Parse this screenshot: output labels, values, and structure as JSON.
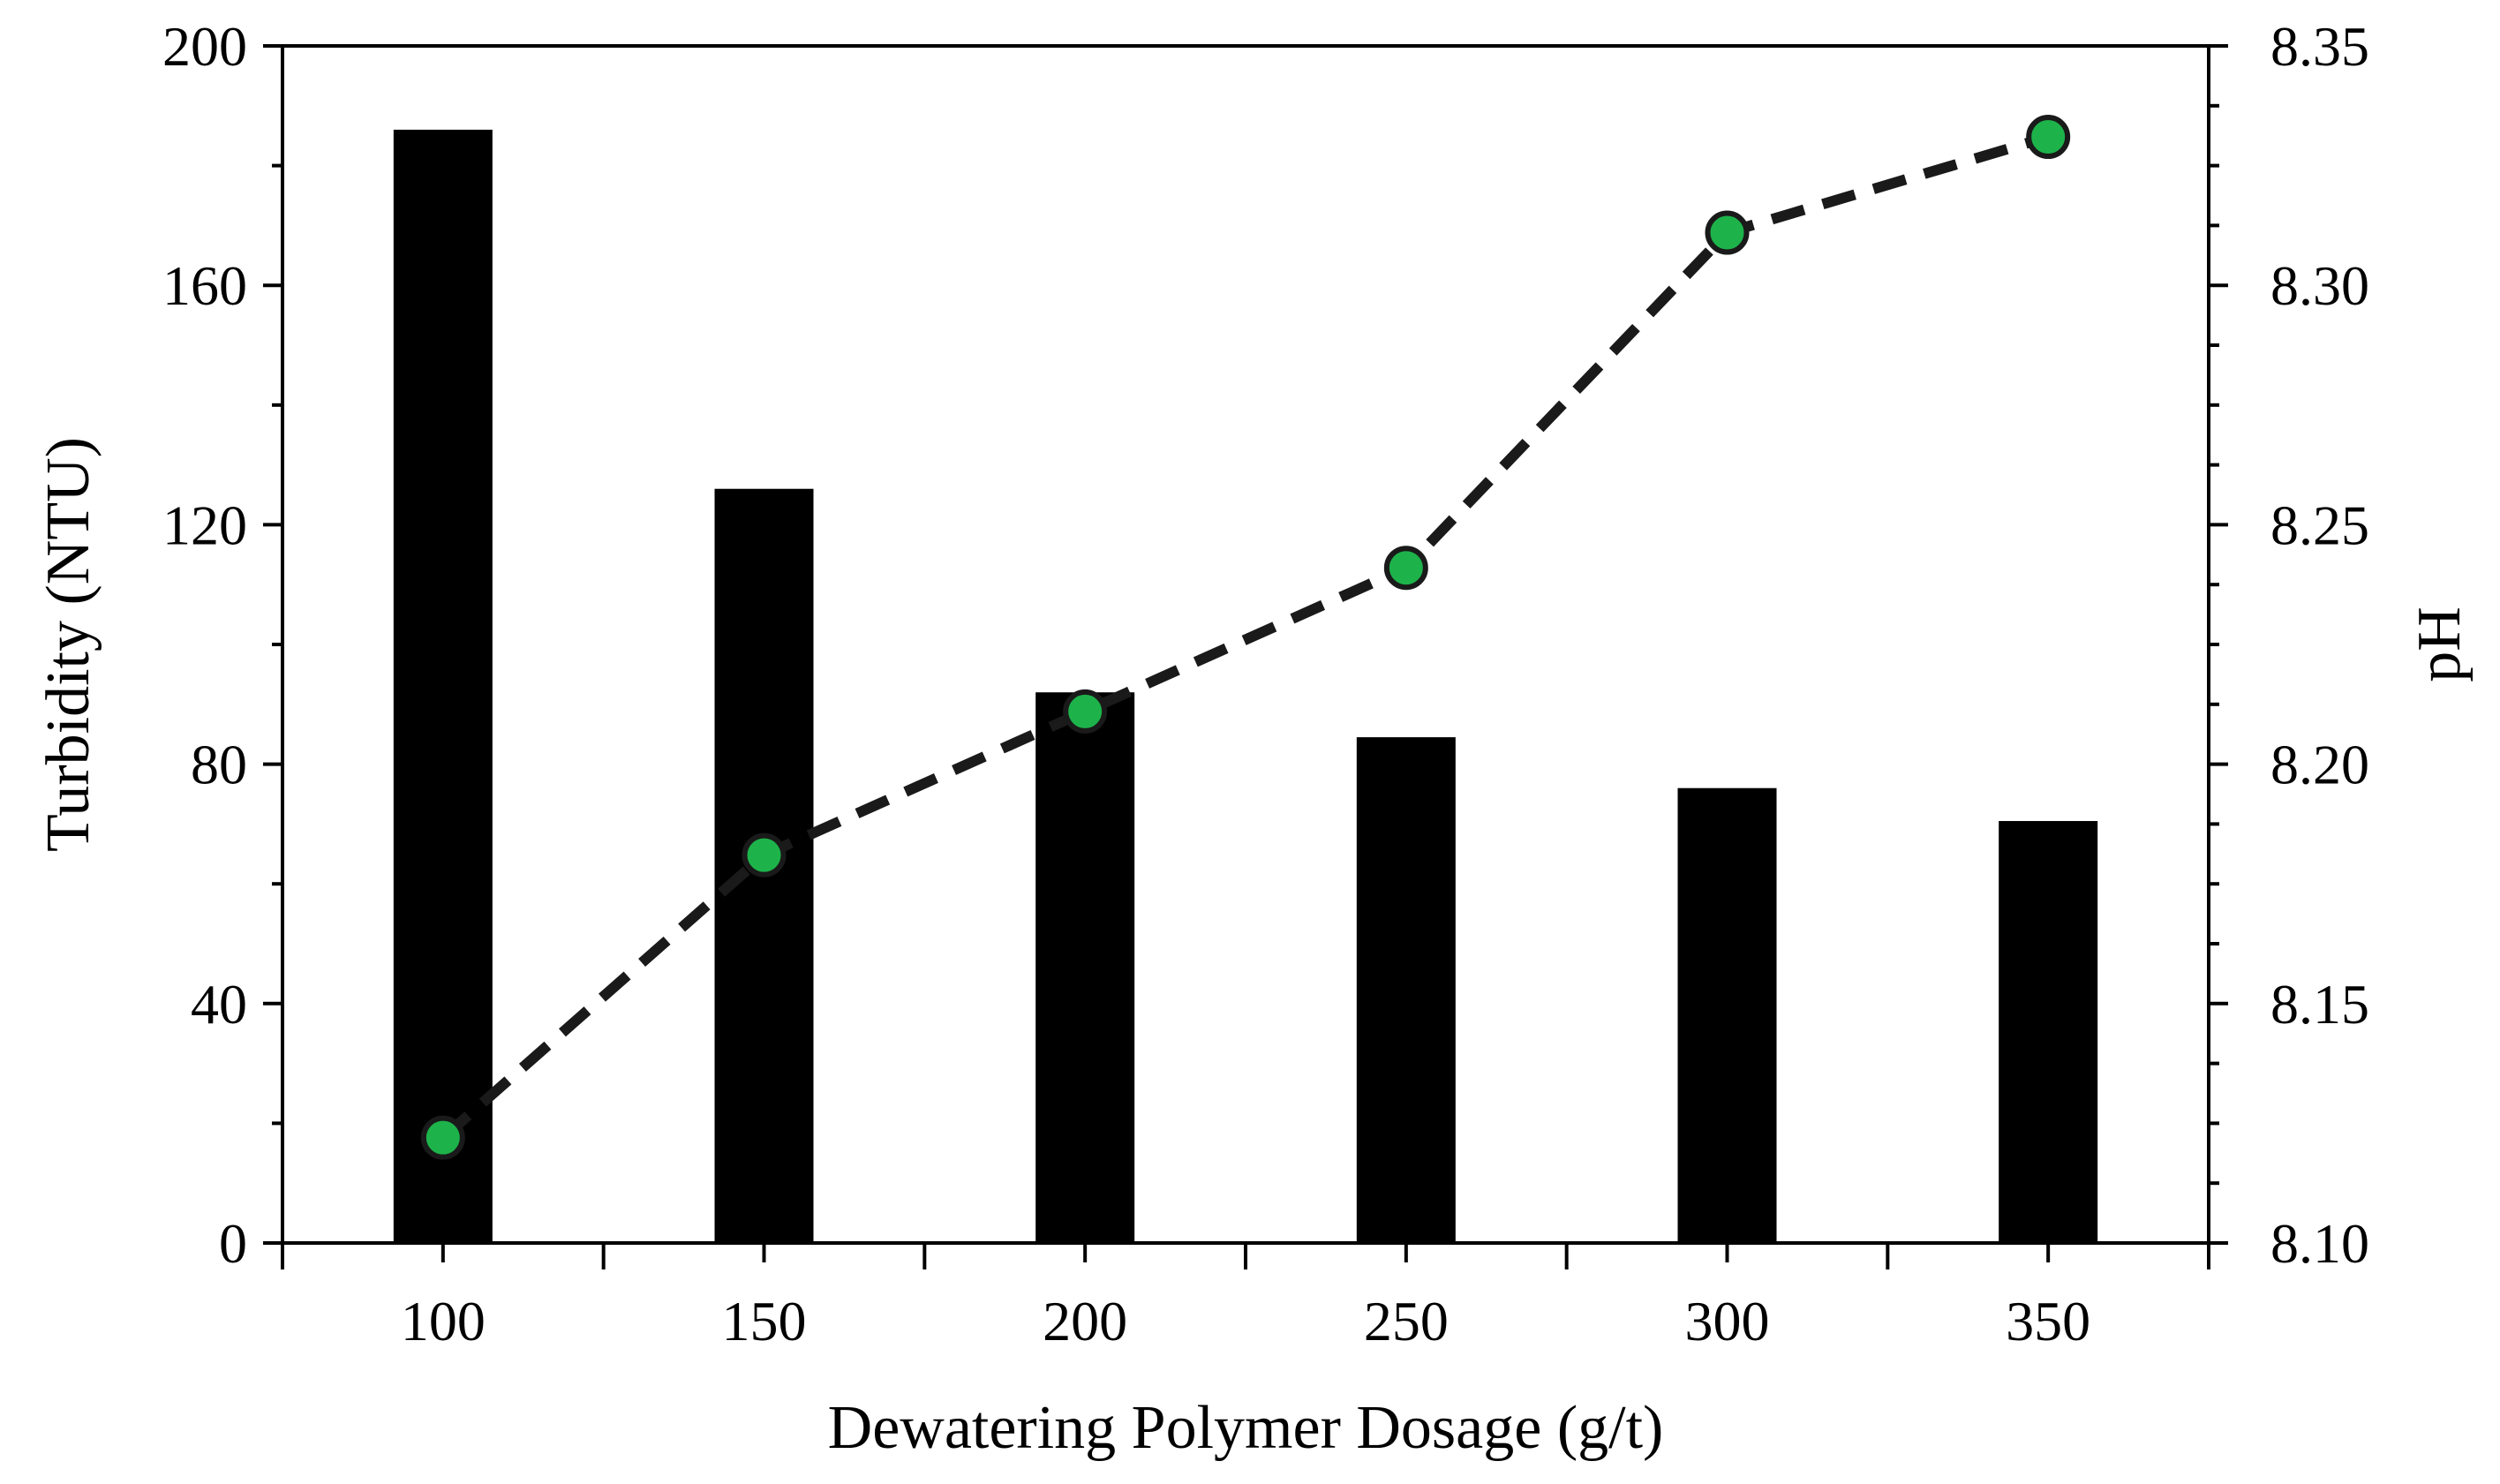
{
  "chart_data": {
    "type": "bar+line",
    "title": "",
    "xlabel": "Dewatering Polymer Dosage (g/t)",
    "ylabel_left": "Turbidity (NTU)",
    "ylabel_right": "pH",
    "x": [
      100,
      150,
      200,
      250,
      300,
      350
    ],
    "x_tick_labels": [
      "100",
      "150",
      "200",
      "250",
      "300",
      "350"
    ],
    "xlim": [
      75,
      375
    ],
    "ylim_left": [
      0,
      200
    ],
    "ylim_right": [
      8.1,
      8.35
    ],
    "y_left_ticks": [
      0,
      40,
      80,
      120,
      160,
      200
    ],
    "y_left_tick_labels": [
      "0",
      "40",
      "80",
      "120",
      "160",
      "200"
    ],
    "y_right_ticks": [
      8.1,
      8.15,
      8.2,
      8.25,
      8.3,
      8.35
    ],
    "y_right_tick_labels": [
      "8.10",
      "8.15",
      "8.20",
      "8.25",
      "8.30",
      "8.35"
    ],
    "grid": false,
    "series": [
      {
        "name": "Turbidity",
        "kind": "bar",
        "axis": "left",
        "color": "#000000",
        "values": [
          186,
          126,
          92,
          84.5,
          76,
          70.5
        ]
      },
      {
        "name": "pH",
        "kind": "line",
        "axis": "right",
        "line_style": "dashed",
        "line_color": "#1a1a1a",
        "marker_color": "#1db34a",
        "marker_edge_color": "#1a1a1a",
        "values": [
          8.122,
          8.181,
          8.211,
          8.241,
          8.311,
          8.331
        ]
      }
    ]
  }
}
